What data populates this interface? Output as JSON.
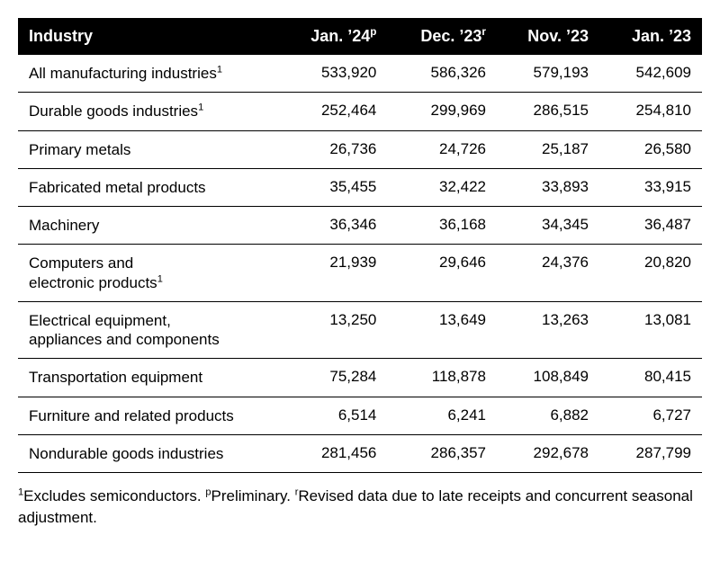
{
  "table": {
    "columns": [
      {
        "label": "Industry",
        "align": "left"
      },
      {
        "label": "Jan. ’24",
        "sup": "p",
        "align": "right"
      },
      {
        "label": "Dec. ’23",
        "sup": "r",
        "align": "right"
      },
      {
        "label": "Nov. ’23",
        "align": "right"
      },
      {
        "label": "Jan. ’23",
        "align": "right"
      }
    ],
    "rows": [
      {
        "label": "All manufacturing industries",
        "sup": "1",
        "values": [
          "533,920",
          "586,326",
          "579,193",
          "542,609"
        ]
      },
      {
        "label": "Durable goods industries",
        "sup": "1",
        "values": [
          "252,464",
          "299,969",
          "286,515",
          "254,810"
        ]
      },
      {
        "label": "Primary metals",
        "values": [
          "26,736",
          "24,726",
          "25,187",
          "26,580"
        ]
      },
      {
        "label": "Fabricated metal products",
        "values": [
          "35,455",
          "32,422",
          "33,893",
          "33,915"
        ]
      },
      {
        "label": "Machinery",
        "values": [
          "36,346",
          "36,168",
          "34,345",
          "36,487"
        ]
      },
      {
        "label": "Computers and",
        "label2": "electronic products",
        "sup": "1",
        "values": [
          "21,939",
          "29,646",
          "24,376",
          "20,820"
        ]
      },
      {
        "label": "Electrical equipment,",
        "label2": "appliances and components",
        "values": [
          "13,250",
          "13,649",
          "13,263",
          "13,081"
        ]
      },
      {
        "label": "Transportation equipment",
        "values": [
          "75,284",
          "118,878",
          "108,849",
          "80,415"
        ]
      },
      {
        "label": "Furniture and related products",
        "values": [
          "6,514",
          "6,241",
          "6,882",
          "6,727"
        ]
      },
      {
        "label": "Nondurable goods industries",
        "values": [
          "281,456",
          "286,357",
          "292,678",
          "287,799"
        ]
      }
    ],
    "header_bg": "#000000",
    "header_fg": "#ffffff",
    "row_border_color": "#000000",
    "font_size_pt": 13,
    "col_widths": [
      "38%",
      "16%",
      "16%",
      "15%",
      "15%"
    ]
  },
  "footnote": {
    "parts": [
      {
        "sup": "1",
        "text": "Excludes semiconductors. "
      },
      {
        "sup": "p",
        "text": "Preliminary. "
      },
      {
        "sup": "r",
        "text": "Revised data due to late receipts and concurrent seasonal adjustment."
      }
    ]
  }
}
